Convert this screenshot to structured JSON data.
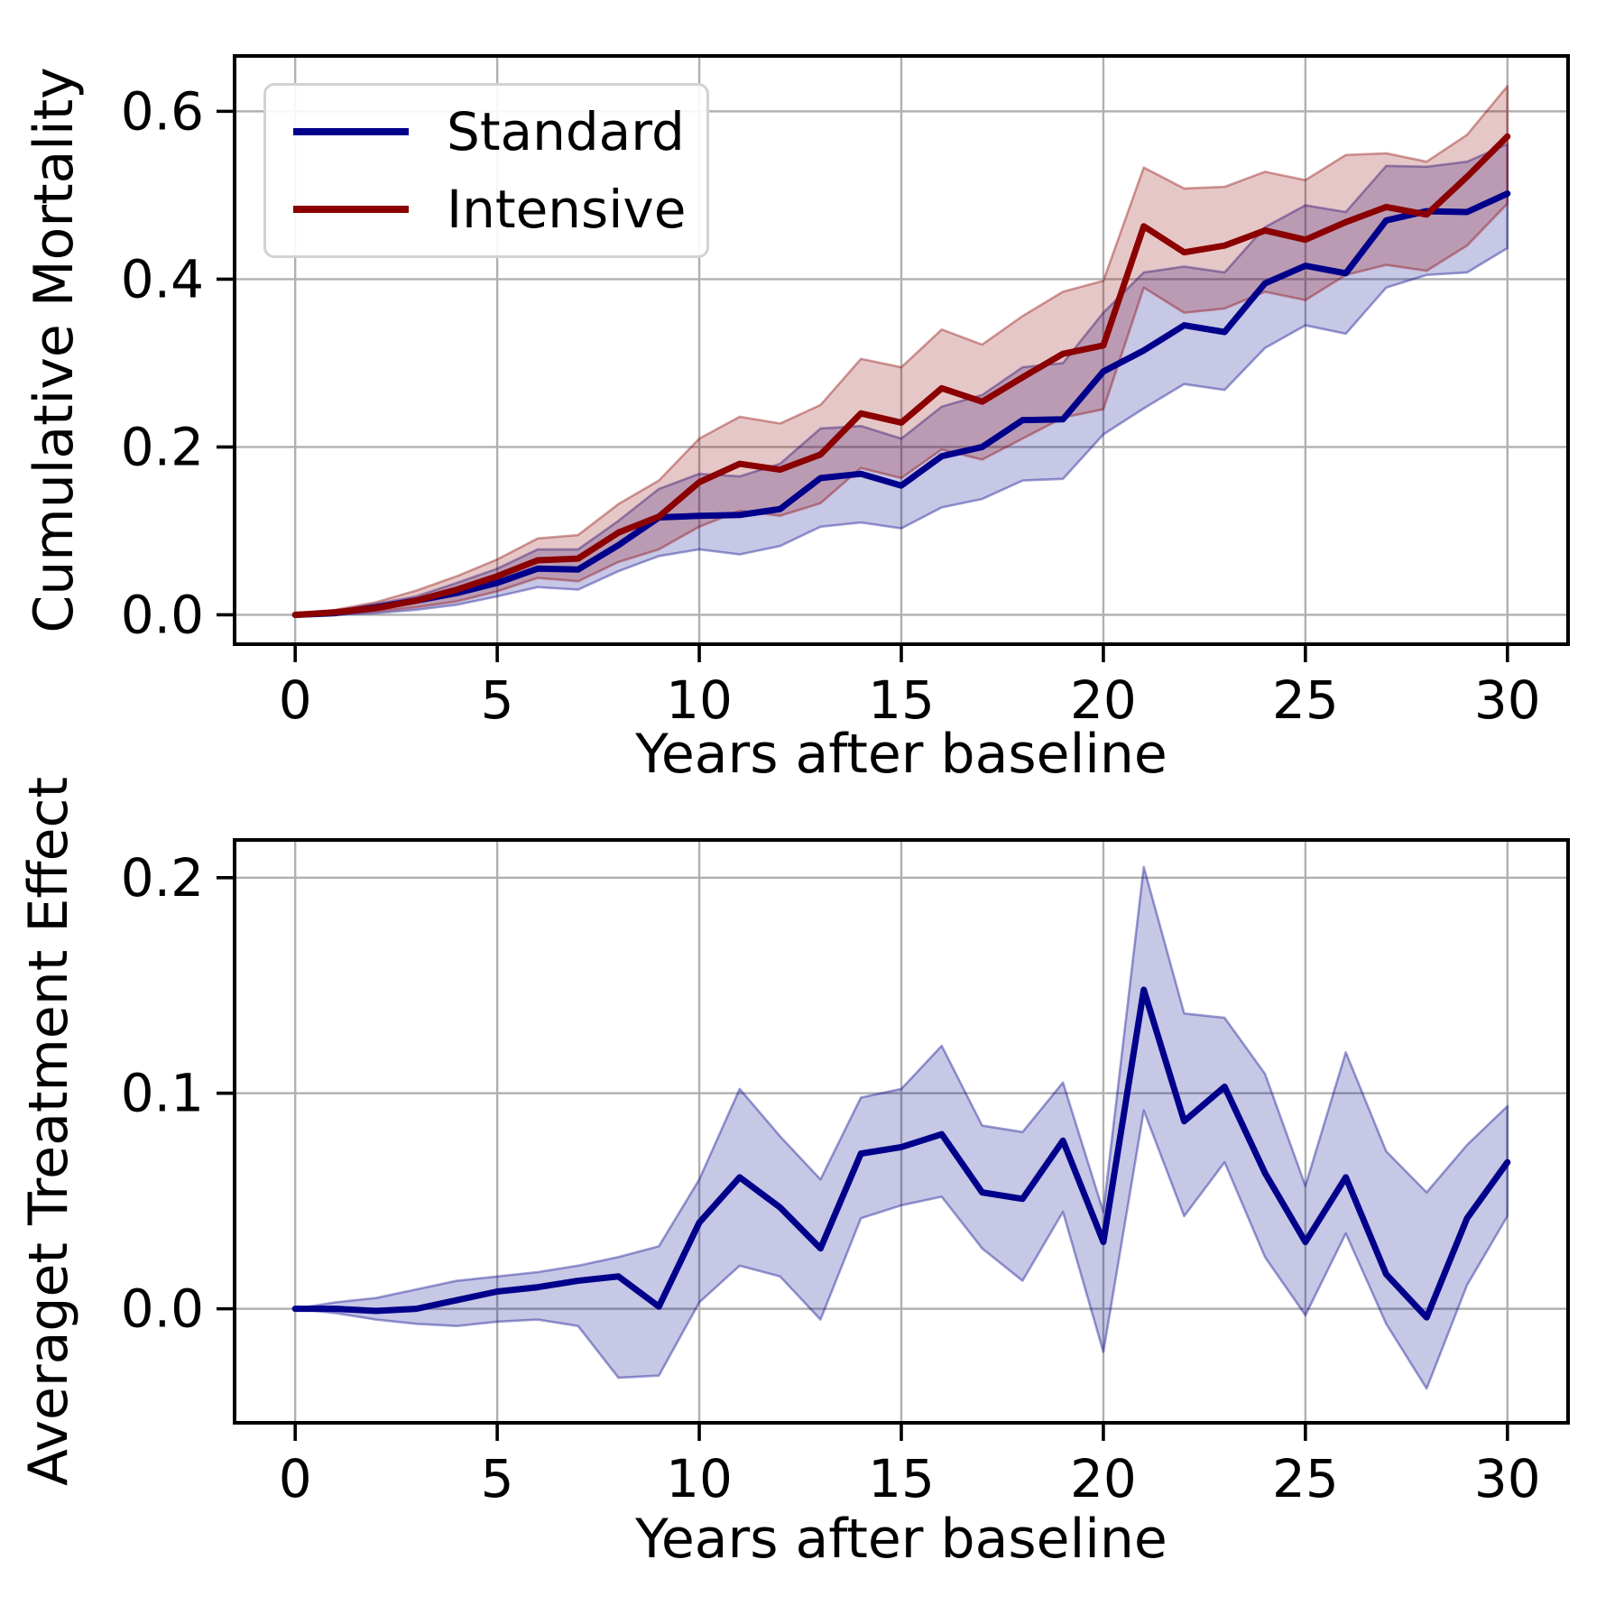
{
  "figure": {
    "background": "#ffffff",
    "grid_color": "#b0b0b0",
    "spine_color": "#000000",
    "text_color": "#000000"
  },
  "legend": {
    "position": "upper left",
    "entries": [
      {
        "label": "Standard",
        "color": "#00008b"
      },
      {
        "label": "Intensive",
        "color": "#8b0000"
      }
    ]
  },
  "chart_data": [
    {
      "type": "line",
      "title": "",
      "xlabel": "Years after baseline",
      "ylabel": "Cumulative Mortality",
      "x": [
        0,
        1,
        2,
        3,
        4,
        5,
        6,
        7,
        8,
        9,
        10,
        11,
        12,
        13,
        14,
        15,
        16,
        17,
        18,
        19,
        20,
        21,
        22,
        23,
        24,
        25,
        26,
        27,
        28,
        29,
        30
      ],
      "xticks": [
        0,
        5,
        10,
        15,
        20,
        25,
        30
      ],
      "xtick_labels": [
        "0",
        "5",
        "10",
        "15",
        "20",
        "25",
        "30"
      ],
      "yticks": [
        0.0,
        0.2,
        0.4,
        0.6
      ],
      "ytick_labels": [
        "0.0",
        "0.2",
        "0.4",
        "0.6"
      ],
      "xlim": [
        -1.5,
        31.5
      ],
      "ylim": [
        -0.035,
        0.666
      ],
      "grid": true,
      "legend_position": "upper left",
      "series": [
        {
          "name": "Standard",
          "color": "#00008b",
          "values": [
            0.0,
            0.002,
            0.009,
            0.017,
            0.026,
            0.038,
            0.055,
            0.054,
            0.083,
            0.116,
            0.118,
            0.119,
            0.126,
            0.163,
            0.168,
            0.154,
            0.189,
            0.2,
            0.232,
            0.233,
            0.29,
            0.315,
            0.345,
            0.337,
            0.395,
            0.416,
            0.407,
            0.47,
            0.481,
            0.48,
            0.502
          ],
          "ci_lower": [
            0.0,
            0.0,
            0.002,
            0.006,
            0.012,
            0.022,
            0.033,
            0.03,
            0.052,
            0.07,
            0.078,
            0.072,
            0.082,
            0.105,
            0.11,
            0.103,
            0.128,
            0.138,
            0.16,
            0.162,
            0.215,
            0.246,
            0.275,
            0.268,
            0.318,
            0.345,
            0.335,
            0.39,
            0.405,
            0.408,
            0.437
          ],
          "ci_upper": [
            0.0,
            0.005,
            0.013,
            0.022,
            0.038,
            0.055,
            0.078,
            0.078,
            0.112,
            0.15,
            0.168,
            0.165,
            0.18,
            0.222,
            0.225,
            0.21,
            0.248,
            0.262,
            0.295,
            0.3,
            0.36,
            0.408,
            0.415,
            0.408,
            0.462,
            0.488,
            0.48,
            0.535,
            0.534,
            0.54,
            0.561
          ]
        },
        {
          "name": "Intensive",
          "color": "#8b0000",
          "values": [
            0.0,
            0.003,
            0.008,
            0.017,
            0.03,
            0.046,
            0.065,
            0.067,
            0.098,
            0.117,
            0.158,
            0.18,
            0.173,
            0.191,
            0.24,
            0.229,
            0.27,
            0.254,
            0.283,
            0.311,
            0.321,
            0.463,
            0.432,
            0.44,
            0.458,
            0.447,
            0.468,
            0.486,
            0.477,
            0.522,
            0.57
          ],
          "ci_lower": [
            0.0,
            0.001,
            0.004,
            0.009,
            0.016,
            0.028,
            0.044,
            0.04,
            0.063,
            0.078,
            0.105,
            0.124,
            0.118,
            0.133,
            0.175,
            0.163,
            0.197,
            0.185,
            0.21,
            0.235,
            0.245,
            0.39,
            0.36,
            0.365,
            0.385,
            0.375,
            0.405,
            0.417,
            0.41,
            0.44,
            0.49
          ],
          "ci_upper": [
            0.0,
            0.006,
            0.015,
            0.029,
            0.046,
            0.066,
            0.091,
            0.095,
            0.132,
            0.16,
            0.21,
            0.236,
            0.228,
            0.25,
            0.305,
            0.295,
            0.34,
            0.322,
            0.356,
            0.385,
            0.398,
            0.533,
            0.508,
            0.51,
            0.528,
            0.518,
            0.548,
            0.55,
            0.54,
            0.572,
            0.63
          ]
        }
      ]
    },
    {
      "type": "line",
      "title": "",
      "xlabel": "Years after baseline",
      "ylabel": "Averaget Treatment Effect",
      "x": [
        0,
        1,
        2,
        3,
        4,
        5,
        6,
        7,
        8,
        9,
        10,
        11,
        12,
        13,
        14,
        15,
        16,
        17,
        18,
        19,
        20,
        21,
        22,
        23,
        24,
        25,
        26,
        27,
        28,
        29,
        30
      ],
      "xticks": [
        0,
        5,
        10,
        15,
        20,
        25,
        30
      ],
      "xtick_labels": [
        "0",
        "5",
        "10",
        "15",
        "20",
        "25",
        "30"
      ],
      "yticks": [
        0.0,
        0.1,
        0.2
      ],
      "ytick_labels": [
        "0.0",
        "0.1",
        "0.2"
      ],
      "xlim": [
        -1.5,
        31.5
      ],
      "ylim": [
        -0.0529,
        0.2175
      ],
      "grid": true,
      "legend_position": "none",
      "series": [
        {
          "name": "Average Treatment Effect",
          "color": "#00008b",
          "values": [
            0.0,
            0.0,
            -0.001,
            0.0,
            0.004,
            0.008,
            0.01,
            0.013,
            0.015,
            0.001,
            0.04,
            0.061,
            0.047,
            0.028,
            0.072,
            0.075,
            0.081,
            0.054,
            0.051,
            0.078,
            0.031,
            0.148,
            0.087,
            0.103,
            0.063,
            0.031,
            0.061,
            0.016,
            -0.004,
            0.042,
            0.068
          ],
          "ci_lower": [
            0.0,
            -0.002,
            -0.005,
            -0.007,
            -0.008,
            -0.006,
            -0.005,
            -0.008,
            -0.032,
            -0.031,
            0.003,
            0.02,
            0.015,
            -0.005,
            0.042,
            0.048,
            0.052,
            0.028,
            0.013,
            0.045,
            -0.02,
            0.092,
            0.043,
            0.068,
            0.024,
            -0.003,
            0.035,
            -0.007,
            -0.037,
            0.011,
            0.043
          ],
          "ci_upper": [
            0.0,
            0.003,
            0.005,
            0.009,
            0.013,
            0.015,
            0.017,
            0.02,
            0.024,
            0.029,
            0.06,
            0.102,
            0.08,
            0.06,
            0.098,
            0.102,
            0.122,
            0.085,
            0.082,
            0.105,
            0.045,
            0.205,
            0.137,
            0.135,
            0.109,
            0.057,
            0.119,
            0.073,
            0.054,
            0.076,
            0.094
          ]
        }
      ]
    }
  ]
}
